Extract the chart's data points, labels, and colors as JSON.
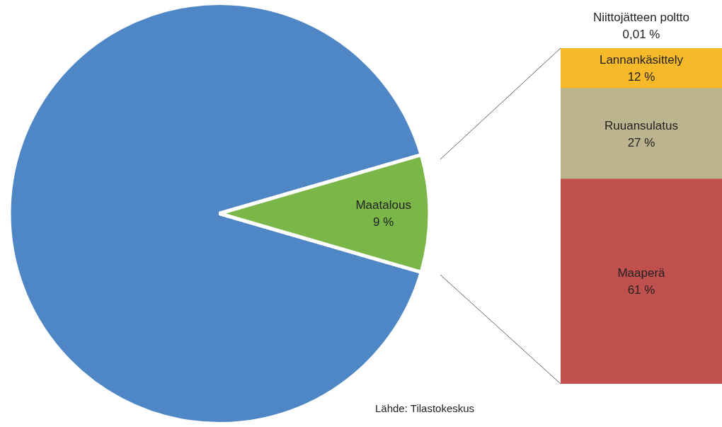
{
  "chart_data": [
    {
      "type": "pie",
      "categories": [
        null,
        "Maatalous"
      ],
      "values": [
        91,
        9
      ],
      "colors": [
        "#4f86c6",
        "#7ab648"
      ],
      "value_labels": [
        null,
        "9 %"
      ]
    },
    {
      "type": "bar",
      "stacked": true,
      "categories": [
        null
      ],
      "tick_labels": false,
      "annotations": [
        "Lähde: Tilastokeskus"
      ],
      "series": [
        {
          "name": "Maaperä",
          "color": "#c0504d",
          "values": [
            61
          ],
          "value_labels": [
            "61 %"
          ]
        },
        {
          "name": "Ruuansulatus",
          "color": "#bcb38f",
          "values": [
            27
          ],
          "value_labels": [
            "27 %"
          ]
        },
        {
          "name": "Lannankäsittely",
          "color": "#f6b92a",
          "values": [
            12
          ],
          "value_labels": [
            "12 %"
          ]
        },
        {
          "name": "Niittojätteen poltto",
          "color": "#1f3864",
          "values": [
            0.01
          ],
          "value_labels": [
            "0,01 %"
          ]
        }
      ]
    }
  ]
}
